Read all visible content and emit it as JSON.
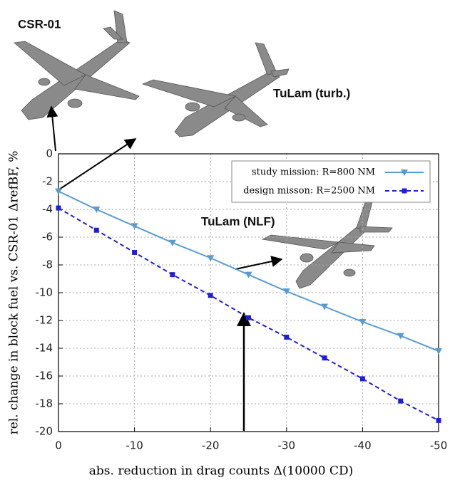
{
  "chart_data": {
    "type": "line",
    "y_label": "rel. change in block fuel vs. CSR-01 ΔrefBF, %",
    "x_label": "abs. reduction in drag counts Δ(10000 CD)",
    "annotations": [
      "CSR-01",
      "TuLam (turb.)",
      "TuLam (NLF)"
    ],
    "x": [
      0,
      -5,
      -10,
      -15,
      -20,
      -25,
      -30,
      -35,
      -40,
      -45,
      -50
    ],
    "series": [
      {
        "name": "study mission: R=800 NM",
        "color": "#5a9bd0",
        "marker": "triangle",
        "dashed": false,
        "values": [
          -2.7,
          -4.0,
          -5.2,
          -6.4,
          -7.5,
          -8.7,
          -9.9,
          -11.0,
          -12.1,
          -13.1,
          -14.2
        ]
      },
      {
        "name": "design misson: R=2500 NM",
        "color": "#1f1fd6",
        "marker": "square",
        "dashed": true,
        "values": [
          -3.9,
          -5.5,
          -7.1,
          -8.7,
          -10.2,
          -11.8,
          -13.2,
          -14.7,
          -16.2,
          -17.8,
          -19.2
        ]
      }
    ],
    "xlim": [
      0,
      -50
    ],
    "xticks": [
      0,
      -10,
      -20,
      -30,
      -40,
      -50
    ],
    "ylim": [
      -20,
      0
    ],
    "yticks": [
      0,
      -2,
      -4,
      -6,
      -8,
      -10,
      -12,
      -14,
      -16,
      -18,
      -20
    ],
    "grid": true,
    "legend": "top-right"
  }
}
